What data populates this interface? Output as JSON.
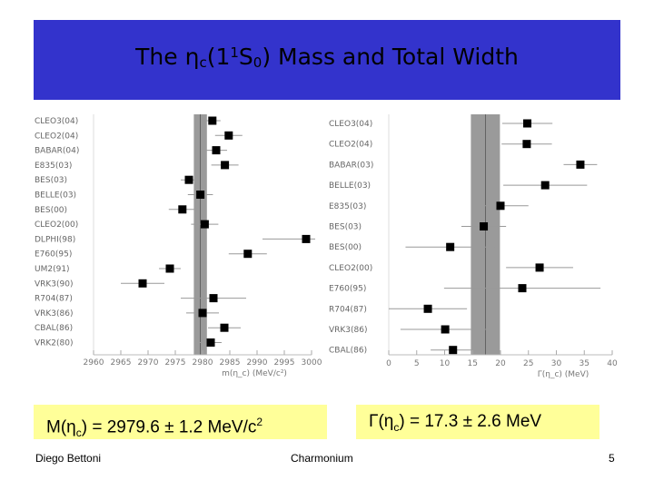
{
  "slide": {
    "title_prefix": "The ",
    "title_symbol": "η",
    "title_sub": "c",
    "title_mid": "(1",
    "title_sup": "1",
    "title_s": "S",
    "title_sub2": "0",
    "title_suffix": ") Mass and Total Width",
    "footer_left": "Diego Bettoni",
    "footer_center": "Charmonium",
    "footer_right": "5",
    "colors": {
      "title_band": "#3333cc",
      "result_box": "#ffff99",
      "band": "#888888",
      "marker": "#000000"
    }
  },
  "results": {
    "mass": {
      "pre": "M(η",
      "sub": "c",
      "mid": ") = 2979.6 ± 1.2 MeV/c",
      "sup": "2"
    },
    "width": {
      "pre": "Γ(η",
      "sub": "c",
      "mid": ") = 17.3 ± 2.6 MeV"
    }
  },
  "chart_data": [
    {
      "type": "scatter",
      "title": "",
      "xlabel": "m(η_c)   (MeV/c²)",
      "ylabel": "",
      "xlim": [
        2960,
        3000
      ],
      "x_ticks": [
        "2960",
        "2965",
        "2970",
        "2975",
        "2980",
        "2985",
        "2990",
        "2995",
        "3000"
      ],
      "band": {
        "center": 2979.6,
        "error": 1.2
      },
      "points": [
        {
          "label": "CLEO3(04)",
          "value": 2981.8,
          "error": 1.5
        },
        {
          "label": "CLEO2(04)",
          "value": 2984.8,
          "error": 2.5
        },
        {
          "label": "BABAR(04)",
          "value": 2982.5,
          "error": 2.0
        },
        {
          "label": "E835(03)",
          "value": 2984.1,
          "error": 2.5
        },
        {
          "label": "BES(03)",
          "value": 2977.5,
          "error": 1.5
        },
        {
          "label": "BELLE(03)",
          "value": 2979.6,
          "error": 2.3
        },
        {
          "label": "BES(00)",
          "value": 2976.3,
          "error": 2.5
        },
        {
          "label": "CLEO2(00)",
          "value": 2980.4,
          "error": 2.5
        },
        {
          "label": "DLPHI(98)",
          "value": 2999.0,
          "error": 8.0
        },
        {
          "label": "E760(95)",
          "value": 2988.3,
          "error": 3.5
        },
        {
          "label": "UM2(91)",
          "value": 2974.0,
          "error": 2.0
        },
        {
          "label": "VRK3(90)",
          "value": 2969.0,
          "error": 4.0
        },
        {
          "label": "R704(87)",
          "value": 2982.0,
          "error": 6.0
        },
        {
          "label": "VRK3(86)",
          "value": 2980.0,
          "error": 3.0
        },
        {
          "label": "CBAL(86)",
          "value": 2984.0,
          "error": 3.0
        },
        {
          "label": "VRK2(80)",
          "value": 2981.5,
          "error": 2.0
        }
      ]
    },
    {
      "type": "scatter",
      "title": "",
      "xlabel": "Γ(η_c)   (MeV)",
      "ylabel": "",
      "xlim": [
        0,
        40
      ],
      "x_ticks": [
        "0",
        "5",
        "10",
        "15",
        "20",
        "25",
        "30",
        "35",
        "40"
      ],
      "band": {
        "center": 17.3,
        "error": 2.6
      },
      "points": [
        {
          "label": "CLEO3(04)",
          "value": 24.8,
          "error": 4.5
        },
        {
          "label": "CLEO2(04)",
          "value": 24.7,
          "error": 4.5
        },
        {
          "label": "BABAR(03)",
          "value": 34.3,
          "error": 3.0
        },
        {
          "label": "BELLE(03)",
          "value": 28.0,
          "error": 7.5
        },
        {
          "label": "E835(03)",
          "value": 20.0,
          "error": 5.0
        },
        {
          "label": "BES(03)",
          "value": 17.0,
          "error": 4.0
        },
        {
          "label": "BES(00)",
          "value": 11.0,
          "error": 8.0
        },
        {
          "label": "CLEO2(00)",
          "value": 27.0,
          "error": 6.0
        },
        {
          "label": "E760(95)",
          "value": 23.9,
          "error": 14.0
        },
        {
          "label": "R704(87)",
          "value": 7.0,
          "error": 7.0
        },
        {
          "label": "VRK3(86)",
          "value": 10.1,
          "error": 8.0
        },
        {
          "label": "CBAL(86)",
          "value": 11.5,
          "error": 4.0
        }
      ]
    }
  ]
}
